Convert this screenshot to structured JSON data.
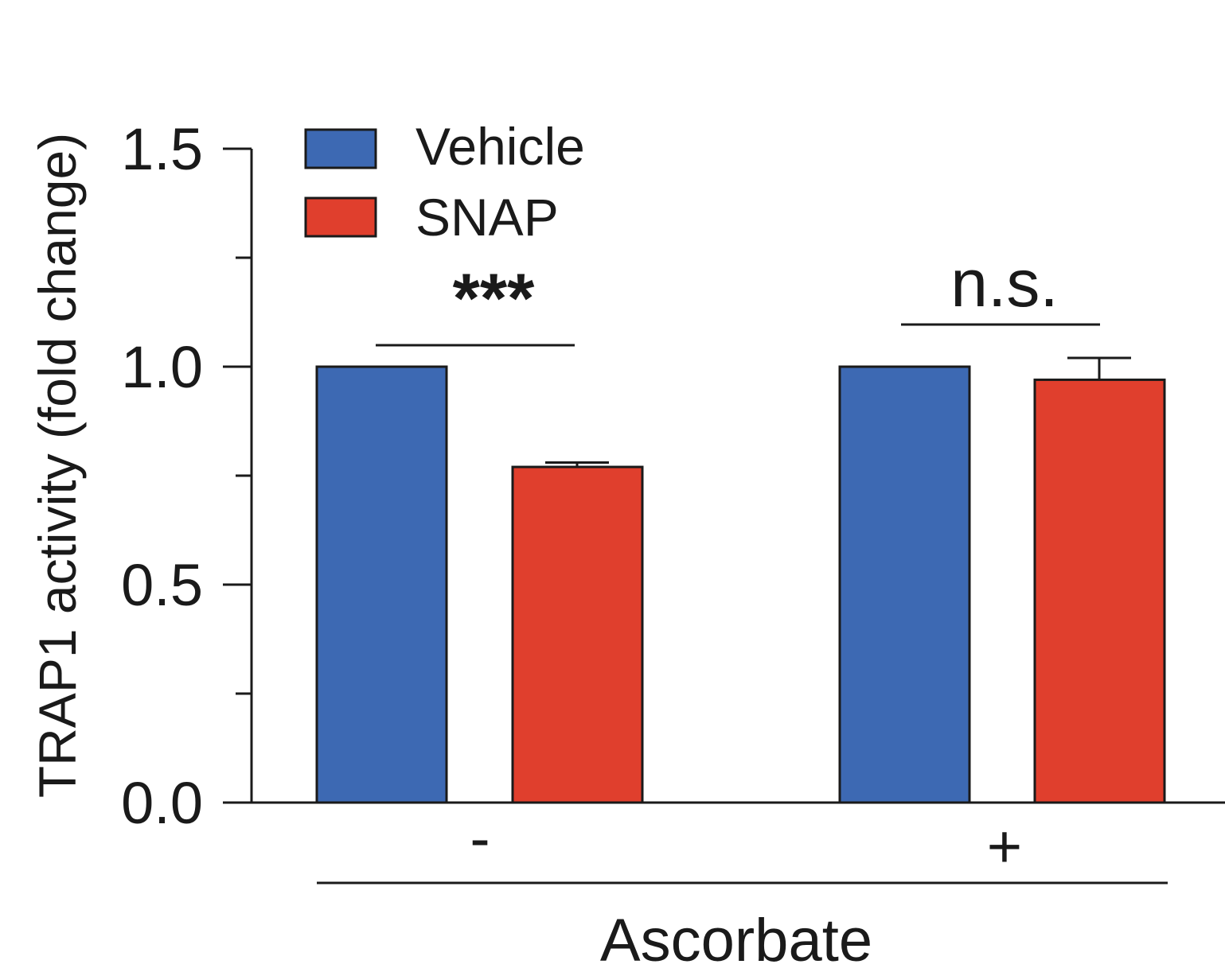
{
  "chart_data": {
    "type": "bar",
    "ylabel": "TRAP1 activity (fold  change)",
    "xlabel": "Ascorbate",
    "categories": [
      "-",
      "+"
    ],
    "series": [
      {
        "name": "Vehicle",
        "values": [
          1.0,
          1.0
        ],
        "errors": [
          0,
          0
        ],
        "color": "#3d69b3"
      },
      {
        "name": "SNAP",
        "values": [
          0.77,
          0.97
        ],
        "errors": [
          0.01,
          0.05
        ],
        "color": "#e03f2d"
      }
    ],
    "ylim": [
      0,
      1.5
    ],
    "yticks": [
      "0.0",
      "0.5",
      "1.0",
      "1.5"
    ],
    "ytick_values": [
      0,
      0.5,
      1.0,
      1.5
    ],
    "y_minor_ticks": [
      0.25,
      0.75,
      1.25
    ],
    "legend_position": "top-left",
    "significance": [
      {
        "category": "-",
        "label": "***"
      },
      {
        "category": "+",
        "label": "n.s."
      }
    ],
    "grid": false
  }
}
